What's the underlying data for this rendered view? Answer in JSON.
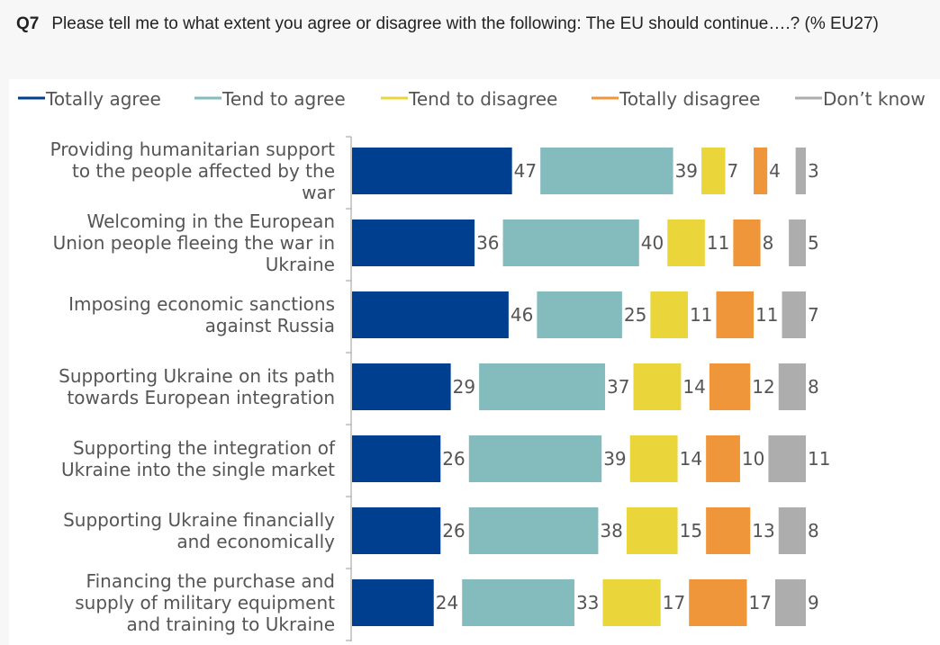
{
  "header": {
    "question_id": "Q7",
    "question_text": "Please tell me to what extent you agree or disagree with the following: The EU should continue….? (% EU27)"
  },
  "chart_data": {
    "type": "bar",
    "stacked": true,
    "orientation": "horizontal",
    "legend_position": "top",
    "grid": false,
    "categories": [
      "Providing humanitarian support to the people affected by the war",
      "Welcoming in the European Union people fleeing the war in Ukraine",
      "Imposing economic sanctions against Russia",
      "Supporting Ukraine on its path towards European integration",
      "Supporting the integration of Ukraine into the single market",
      "Supporting Ukraine financially and economically",
      "Financing the purchase and supply of military equipment and training to Ukraine"
    ],
    "category_lines": [
      [
        "Providing humanitarian support",
        "to the people affected by the",
        "war"
      ],
      [
        "Welcoming in the European",
        "Union people fleeing the war in",
        "Ukraine"
      ],
      [
        "Imposing economic sanctions",
        "against Russia"
      ],
      [
        "Supporting Ukraine on its path",
        "towards European integration"
      ],
      [
        "Supporting the integration of",
        "Ukraine into the single market"
      ],
      [
        "Supporting Ukraine financially",
        "and economically"
      ],
      [
        "Financing the purchase and",
        "supply of military equipment",
        "and training to Ukraine"
      ]
    ],
    "series": [
      {
        "name": "Totally agree",
        "color": "#003f8f",
        "values": [
          47,
          36,
          46,
          29,
          26,
          26,
          24
        ]
      },
      {
        "name": "Tend to agree",
        "color": "#84bbbd",
        "values": [
          39,
          40,
          25,
          37,
          39,
          38,
          33
        ]
      },
      {
        "name": "Tend to disagree",
        "color": "#ead63b",
        "values": [
          7,
          11,
          11,
          14,
          14,
          15,
          17
        ]
      },
      {
        "name": "Totally disagree",
        "color": "#f0963a",
        "values": [
          4,
          8,
          11,
          12,
          10,
          13,
          17
        ]
      },
      {
        "name": "Don’t know",
        "color": "#adadad",
        "values": [
          3,
          5,
          7,
          8,
          11,
          8,
          9
        ]
      }
    ]
  }
}
